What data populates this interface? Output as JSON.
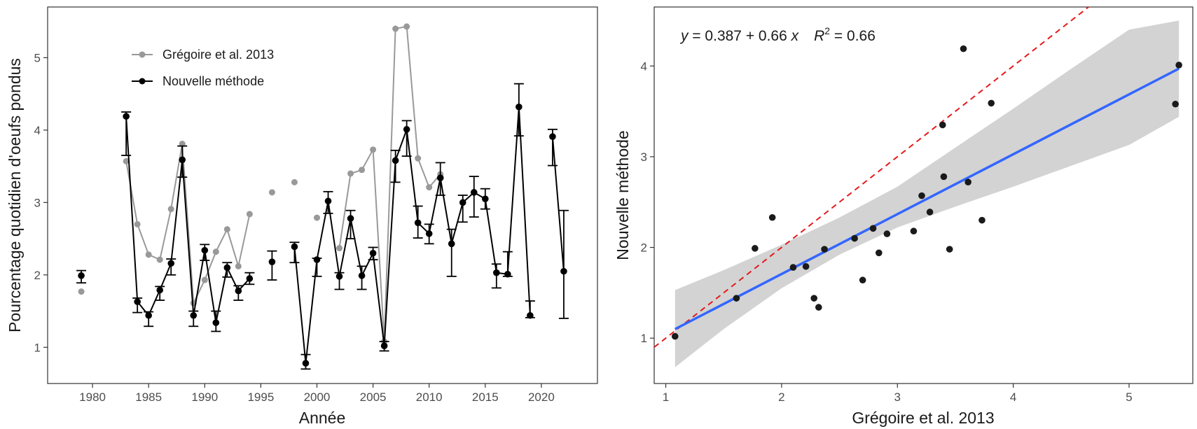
{
  "chart_data": [
    {
      "type": "line",
      "xlabel": "Année",
      "ylabel": "Pourcentage quotidien d'oeufs pondus",
      "xlim": [
        1976,
        2025
      ],
      "ylim": [
        0.5,
        5.7
      ],
      "xticks": [
        "1980",
        "1985",
        "1990",
        "1995",
        "2000",
        "2005",
        "2010",
        "2015",
        "2020"
      ],
      "yticks": [
        "1",
        "2",
        "3",
        "4",
        "5"
      ],
      "grid": false,
      "legend_position": "top-left",
      "series": [
        {
          "name": "Grégoire et al. 2013",
          "color": "#999999",
          "segments": [
            [
              [
                1979,
                1.77
              ]
            ],
            [
              [
                1983,
                3.57
              ],
              [
                1984,
                2.7
              ],
              [
                1985,
                2.28
              ],
              [
                1986,
                2.21
              ],
              [
                1987,
                2.91
              ],
              [
                1988,
                3.81
              ],
              [
                1989,
                1.61
              ],
              [
                1990,
                1.93
              ],
              [
                1991,
                2.32
              ],
              [
                1992,
                2.63
              ],
              [
                1993,
                2.12
              ],
              [
                1994,
                2.84
              ]
            ],
            [
              [
                1996,
                3.14
              ]
            ],
            [
              [
                1998,
                3.28
              ]
            ],
            [
              [
                2000,
                2.79
              ]
            ],
            [
              [
                2002,
                2.37
              ],
              [
                2003,
                3.4
              ],
              [
                2004,
                3.45
              ],
              [
                2005,
                3.73
              ],
              [
                2006,
                1.08
              ],
              [
                2007,
                5.4
              ],
              [
                2008,
                5.43
              ],
              [
                2009,
                3.61
              ],
              [
                2010,
                3.21
              ],
              [
                2011,
                3.39
              ]
            ]
          ]
        },
        {
          "name": "Nouvelle méthode",
          "color": "#000000",
          "points": [
            {
              "x": 1979,
              "y": 1.99,
              "lo": 1.89,
              "hi": 2.06
            },
            {
              "x": 1983,
              "y": 4.19,
              "lo": 3.65,
              "hi": 4.25
            },
            {
              "x": 1984,
              "y": 1.63,
              "lo": 1.48,
              "hi": 1.68
            },
            {
              "x": 1985,
              "y": 1.44,
              "lo": 1.29,
              "hi": 1.49
            },
            {
              "x": 1986,
              "y": 1.79,
              "lo": 1.65,
              "hi": 1.84
            },
            {
              "x": 1987,
              "y": 2.16,
              "lo": 2.0,
              "hi": 2.22
            },
            {
              "x": 1988,
              "y": 3.59,
              "lo": 3.35,
              "hi": 3.78
            },
            {
              "x": 1989,
              "y": 1.44,
              "lo": 1.29,
              "hi": 1.5
            },
            {
              "x": 1990,
              "y": 2.34,
              "lo": 2.2,
              "hi": 2.42
            },
            {
              "x": 1991,
              "y": 1.34,
              "lo": 1.22,
              "hi": 1.5
            },
            {
              "x": 1992,
              "y": 2.1,
              "lo": 1.97,
              "hi": 2.17
            },
            {
              "x": 1993,
              "y": 1.78,
              "lo": 1.65,
              "hi": 1.85
            },
            {
              "x": 1994,
              "y": 1.95,
              "lo": 1.87,
              "hi": 2.03
            },
            {
              "x": 1996,
              "y": 2.18,
              "lo": 1.93,
              "hi": 2.33
            },
            {
              "x": 1998,
              "y": 2.39,
              "lo": 2.17,
              "hi": 2.45
            },
            {
              "x": 1999,
              "y": 0.78,
              "lo": 0.7,
              "hi": 0.9
            },
            {
              "x": 2000,
              "y": 2.21,
              "lo": 1.98,
              "hi": 2.23
            },
            {
              "x": 2001,
              "y": 3.02,
              "lo": 2.85,
              "hi": 3.15
            },
            {
              "x": 2002,
              "y": 1.98,
              "lo": 1.8,
              "hi": 2.03
            },
            {
              "x": 2003,
              "y": 2.78,
              "lo": 2.5,
              "hi": 2.89
            },
            {
              "x": 2004,
              "y": 1.99,
              "lo": 1.8,
              "hi": 2.12
            },
            {
              "x": 2005,
              "y": 2.3,
              "lo": 2.21,
              "hi": 2.38
            },
            {
              "x": 2006,
              "y": 1.02,
              "lo": 0.95,
              "hi": 1.08
            },
            {
              "x": 2007,
              "y": 3.58,
              "lo": 3.28,
              "hi": 3.72
            },
            {
              "x": 2008,
              "y": 4.01,
              "lo": 3.64,
              "hi": 4.13
            },
            {
              "x": 2009,
              "y": 2.72,
              "lo": 2.51,
              "hi": 2.95
            },
            {
              "x": 2010,
              "y": 2.57,
              "lo": 2.43,
              "hi": 2.7
            },
            {
              "x": 2011,
              "y": 3.34,
              "lo": 3.1,
              "hi": 3.55
            },
            {
              "x": 2012,
              "y": 2.43,
              "lo": 1.98,
              "hi": 2.63
            },
            {
              "x": 2013,
              "y": 3.0,
              "lo": 2.73,
              "hi": 3.1
            },
            {
              "x": 2014,
              "y": 3.14,
              "lo": 2.8,
              "hi": 3.36
            },
            {
              "x": 2015,
              "y": 3.05,
              "lo": 2.91,
              "hi": 3.19
            },
            {
              "x": 2016,
              "y": 2.03,
              "lo": 1.82,
              "hi": 2.15
            },
            {
              "x": 2017,
              "y": 2.01,
              "lo": 1.98,
              "hi": 2.32
            },
            {
              "x": 2018,
              "y": 4.32,
              "lo": 3.92,
              "hi": 4.64
            },
            {
              "x": 2019,
              "y": 1.44,
              "lo": 1.41,
              "hi": 1.64
            },
            {
              "x": 2021,
              "y": 3.91,
              "lo": 3.51,
              "hi": 4.01
            },
            {
              "x": 2022,
              "y": 2.05,
              "lo": 1.4,
              "hi": 2.89
            }
          ],
          "segments": [
            [
              1979
            ],
            [
              1983,
              1984,
              1985,
              1986,
              1987,
              1988,
              1989,
              1990,
              1991,
              1992,
              1993,
              1994
            ],
            [
              1996
            ],
            [
              1998,
              1999,
              2000,
              2001,
              2002,
              2003,
              2004,
              2005,
              2006,
              2007,
              2008,
              2009,
              2010,
              2011,
              2012,
              2013,
              2014,
              2015,
              2016,
              2017,
              2018,
              2019
            ],
            [
              2021,
              2022
            ]
          ]
        }
      ]
    },
    {
      "type": "scatter",
      "xlabel": "Grégoire et al. 2013",
      "ylabel": "Nouvelle méthode",
      "xlim": [
        0.9,
        5.55
      ],
      "ylim": [
        0.5,
        4.65
      ],
      "xticks": [
        "1",
        "2",
        "3",
        "4",
        "5"
      ],
      "yticks": [
        "1",
        "2",
        "3",
        "4"
      ],
      "grid": false,
      "annotation": {
        "y": "y",
        "eq": " = 0.387 + 0.66 ",
        "x": "x",
        "r": "R",
        "sup": "2",
        "rv": " = 0.66"
      },
      "points": [
        [
          1.08,
          1.02
        ],
        [
          1.61,
          1.44
        ],
        [
          1.77,
          1.99
        ],
        [
          1.92,
          2.33
        ],
        [
          2.1,
          1.78
        ],
        [
          2.21,
          1.79
        ],
        [
          2.28,
          1.44
        ],
        [
          2.32,
          1.34
        ],
        [
          2.37,
          1.98
        ],
        [
          2.63,
          2.1
        ],
        [
          2.7,
          1.64
        ],
        [
          2.79,
          2.21
        ],
        [
          2.84,
          1.94
        ],
        [
          2.91,
          2.15
        ],
        [
          3.14,
          2.18
        ],
        [
          3.21,
          2.57
        ],
        [
          3.28,
          2.39
        ],
        [
          3.39,
          3.35
        ],
        [
          3.4,
          2.78
        ],
        [
          3.45,
          1.98
        ],
        [
          3.57,
          4.19
        ],
        [
          3.61,
          2.72
        ],
        [
          3.73,
          2.3
        ],
        [
          3.81,
          3.59
        ],
        [
          5.4,
          3.58
        ],
        [
          5.43,
          4.01
        ]
      ],
      "point_color": "#1a1a1a",
      "fit": {
        "intercept": 0.387,
        "slope": 0.66,
        "x_range": [
          1.08,
          5.43
        ],
        "color": "#3366ff"
      },
      "ci_band": [
        {
          "x": 1.08,
          "lo": 0.68,
          "hi": 1.53
        },
        {
          "x": 1.5,
          "lo": 1.1,
          "hi": 1.75
        },
        {
          "x": 2.0,
          "lo": 1.55,
          "hi": 2.03
        },
        {
          "x": 2.5,
          "lo": 1.92,
          "hi": 2.33
        },
        {
          "x": 3.0,
          "lo": 2.22,
          "hi": 2.67
        },
        {
          "x": 3.5,
          "lo": 2.45,
          "hi": 3.1
        },
        {
          "x": 4.0,
          "lo": 2.67,
          "hi": 3.53
        },
        {
          "x": 4.5,
          "lo": 2.9,
          "hi": 3.97
        },
        {
          "x": 5.0,
          "lo": 3.13,
          "hi": 4.4
        },
        {
          "x": 5.43,
          "lo": 3.44,
          "hi": 4.5
        }
      ],
      "ci_color": "#d3d3d3",
      "identity_line": {
        "slope": 1,
        "intercept": 0,
        "color": "#e41a1c",
        "dashed": true
      }
    }
  ]
}
